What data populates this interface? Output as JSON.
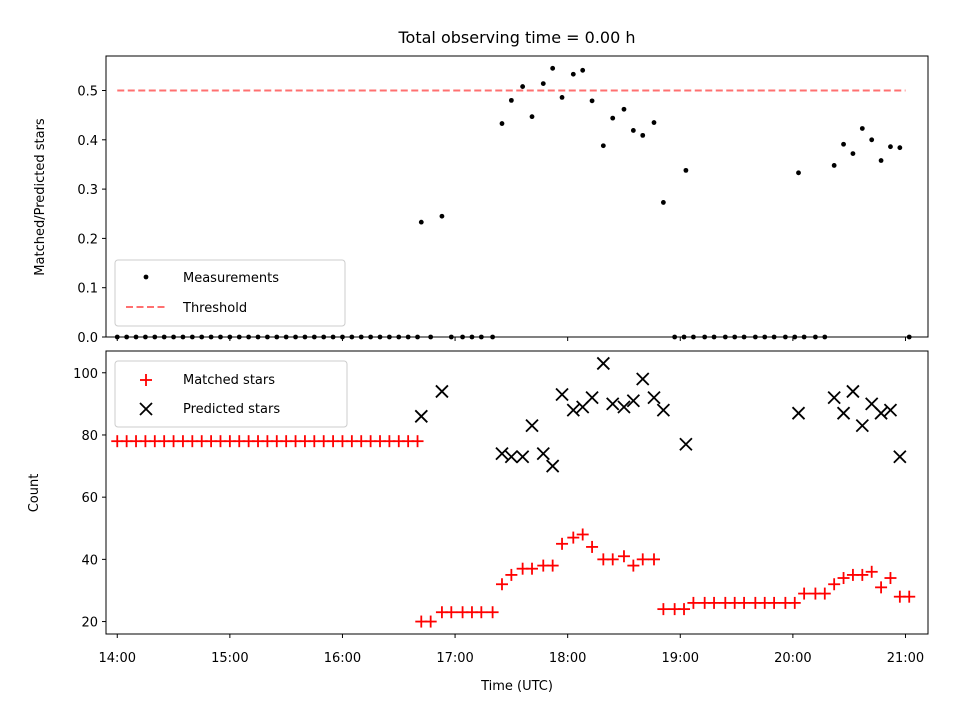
{
  "chart_data": [
    {
      "type": "scatter",
      "title": "Total observing time = 0.00 h",
      "xlabel": "",
      "ylabel": "Matched/Predicted stars",
      "xlim": [
        "13:54",
        "21:12"
      ],
      "ylim": [
        0,
        0.57
      ],
      "yticks": [
        "0.0",
        "0.1",
        "0.2",
        "0.3",
        "0.4",
        "0.5"
      ],
      "legend_position": "lower-left",
      "series": [
        {
          "name": "Measurements",
          "color": "#000000",
          "marker": "dot",
          "points": [
            [
              "14:00",
              0
            ],
            [
              "14:05",
              0
            ],
            [
              "14:10",
              0
            ],
            [
              "14:15",
              0
            ],
            [
              "14:20",
              0
            ],
            [
              "14:25",
              0
            ],
            [
              "14:30",
              0
            ],
            [
              "14:35",
              0
            ],
            [
              "14:40",
              0
            ],
            [
              "14:45",
              0
            ],
            [
              "14:50",
              0
            ],
            [
              "14:55",
              0
            ],
            [
              "15:00",
              0
            ],
            [
              "15:05",
              0
            ],
            [
              "15:10",
              0
            ],
            [
              "15:15",
              0
            ],
            [
              "15:20",
              0
            ],
            [
              "15:25",
              0
            ],
            [
              "15:30",
              0
            ],
            [
              "15:35",
              0
            ],
            [
              "15:40",
              0
            ],
            [
              "15:45",
              0
            ],
            [
              "15:50",
              0
            ],
            [
              "15:55",
              0
            ],
            [
              "16:00",
              0
            ],
            [
              "16:05",
              0
            ],
            [
              "16:10",
              0
            ],
            [
              "16:15",
              0
            ],
            [
              "16:20",
              0
            ],
            [
              "16:25",
              0
            ],
            [
              "16:30",
              0
            ],
            [
              "16:35",
              0
            ],
            [
              "16:40",
              0
            ],
            [
              "16:42",
              0.233
            ],
            [
              "16:47",
              0
            ],
            [
              "16:53",
              0.245
            ],
            [
              "16:58",
              0
            ],
            [
              "17:04",
              0
            ],
            [
              "17:09",
              0
            ],
            [
              "17:14",
              0
            ],
            [
              "17:20",
              0
            ],
            [
              "17:25",
              0.433
            ],
            [
              "17:30",
              0.48
            ],
            [
              "17:36",
              0.508
            ],
            [
              "17:41",
              0.447
            ],
            [
              "17:47",
              0.514
            ],
            [
              "17:52",
              0.545
            ],
            [
              "17:57",
              0.486
            ],
            [
              "18:03",
              0.533
            ],
            [
              "18:08",
              0.541
            ],
            [
              "18:13",
              0.479
            ],
            [
              "18:19",
              0.388
            ],
            [
              "18:24",
              0.444
            ],
            [
              "18:30",
              0.462
            ],
            [
              "18:35",
              0.419
            ],
            [
              "18:40",
              0.409
            ],
            [
              "18:46",
              0.435
            ],
            [
              "18:51",
              0.273
            ],
            [
              "18:57",
              0
            ],
            [
              "19:02",
              0
            ],
            [
              "19:07",
              0
            ],
            [
              "19:03",
              0.338
            ],
            [
              "19:13",
              0
            ],
            [
              "19:18",
              0
            ],
            [
              "19:24",
              0
            ],
            [
              "19:29",
              0
            ],
            [
              "19:34",
              0
            ],
            [
              "19:40",
              0
            ],
            [
              "19:45",
              0
            ],
            [
              "19:50",
              0
            ],
            [
              "19:56",
              0
            ],
            [
              "20:01",
              0
            ],
            [
              "20:06",
              0
            ],
            [
              "20:12",
              0
            ],
            [
              "20:17",
              0
            ],
            [
              "20:03",
              0.333
            ],
            [
              "20:22",
              0.348
            ],
            [
              "20:27",
              0.391
            ],
            [
              "20:32",
              0.372
            ],
            [
              "20:37",
              0.423
            ],
            [
              "20:42",
              0.4
            ],
            [
              "20:47",
              0.358
            ],
            [
              "20:52",
              0.386
            ],
            [
              "20:57",
              0.384
            ],
            [
              "21:02",
              0
            ]
          ]
        },
        {
          "name": "Threshold",
          "color": "#ff7070",
          "marker": "dashed-line",
          "points": [
            [
              "14:00",
              0.5
            ],
            [
              "21:00",
              0.5
            ]
          ]
        }
      ]
    },
    {
      "type": "scatter",
      "title": "",
      "xlabel": "Time (UTC)",
      "ylabel": "Count",
      "xlim": [
        "13:54",
        "21:12"
      ],
      "ylim": [
        16,
        107
      ],
      "yticks": [
        "20",
        "40",
        "60",
        "80",
        "100"
      ],
      "xticks": [
        "14:00",
        "15:00",
        "16:00",
        "17:00",
        "18:00",
        "19:00",
        "20:00",
        "21:00"
      ],
      "legend_position": "upper-left",
      "series": [
        {
          "name": "Matched stars",
          "color": "#ff0000",
          "marker": "plus",
          "points": [
            [
              "14:00",
              78
            ],
            [
              "14:05",
              78
            ],
            [
              "14:10",
              78
            ],
            [
              "14:15",
              78
            ],
            [
              "14:20",
              78
            ],
            [
              "14:25",
              78
            ],
            [
              "14:30",
              78
            ],
            [
              "14:35",
              78
            ],
            [
              "14:40",
              78
            ],
            [
              "14:45",
              78
            ],
            [
              "14:50",
              78
            ],
            [
              "14:55",
              78
            ],
            [
              "15:00",
              78
            ],
            [
              "15:05",
              78
            ],
            [
              "15:10",
              78
            ],
            [
              "15:15",
              78
            ],
            [
              "15:20",
              78
            ],
            [
              "15:25",
              78
            ],
            [
              "15:30",
              78
            ],
            [
              "15:35",
              78
            ],
            [
              "15:40",
              78
            ],
            [
              "15:45",
              78
            ],
            [
              "15:50",
              78
            ],
            [
              "15:55",
              78
            ],
            [
              "16:00",
              78
            ],
            [
              "16:05",
              78
            ],
            [
              "16:10",
              78
            ],
            [
              "16:15",
              78
            ],
            [
              "16:20",
              78
            ],
            [
              "16:25",
              78
            ],
            [
              "16:30",
              78
            ],
            [
              "16:35",
              78
            ],
            [
              "16:40",
              78
            ],
            [
              "16:42",
              20
            ],
            [
              "16:47",
              20
            ],
            [
              "16:53",
              23
            ],
            [
              "16:58",
              23
            ],
            [
              "17:04",
              23
            ],
            [
              "17:09",
              23
            ],
            [
              "17:14",
              23
            ],
            [
              "17:20",
              23
            ],
            [
              "17:25",
              32
            ],
            [
              "17:30",
              35
            ],
            [
              "17:36",
              37
            ],
            [
              "17:41",
              37
            ],
            [
              "17:47",
              38
            ],
            [
              "17:52",
              38
            ],
            [
              "17:57",
              45
            ],
            [
              "18:03",
              47
            ],
            [
              "18:08",
              48
            ],
            [
              "18:13",
              44
            ],
            [
              "18:19",
              40
            ],
            [
              "18:24",
              40
            ],
            [
              "18:30",
              41
            ],
            [
              "18:35",
              38
            ],
            [
              "18:40",
              40
            ],
            [
              "18:46",
              40
            ],
            [
              "18:51",
              24
            ],
            [
              "18:57",
              24
            ],
            [
              "19:02",
              24
            ],
            [
              "19:07",
              26
            ],
            [
              "19:13",
              26
            ],
            [
              "19:18",
              26
            ],
            [
              "19:24",
              26
            ],
            [
              "19:29",
              26
            ],
            [
              "19:34",
              26
            ],
            [
              "19:40",
              26
            ],
            [
              "19:45",
              26
            ],
            [
              "19:50",
              26
            ],
            [
              "19:56",
              26
            ],
            [
              "20:01",
              26
            ],
            [
              "20:06",
              29
            ],
            [
              "20:12",
              29
            ],
            [
              "20:17",
              29
            ],
            [
              "20:22",
              32
            ],
            [
              "20:27",
              34
            ],
            [
              "20:32",
              35
            ],
            [
              "20:37",
              35
            ],
            [
              "20:42",
              36
            ],
            [
              "20:47",
              31
            ],
            [
              "20:52",
              34
            ],
            [
              "20:57",
              28
            ],
            [
              "21:02",
              28
            ]
          ]
        },
        {
          "name": "Predicted stars",
          "color": "#000000",
          "marker": "x",
          "points": [
            [
              "16:42",
              86
            ],
            [
              "16:53",
              94
            ],
            [
              "17:25",
              74
            ],
            [
              "17:30",
              73
            ],
            [
              "17:36",
              73
            ],
            [
              "17:41",
              83
            ],
            [
              "17:47",
              74
            ],
            [
              "17:52",
              70
            ],
            [
              "17:57",
              93
            ],
            [
              "18:03",
              88
            ],
            [
              "18:08",
              89
            ],
            [
              "18:13",
              92
            ],
            [
              "18:19",
              103
            ],
            [
              "18:24",
              90
            ],
            [
              "18:30",
              89
            ],
            [
              "18:35",
              91
            ],
            [
              "18:40",
              98
            ],
            [
              "18:46",
              92
            ],
            [
              "18:51",
              88
            ],
            [
              "19:03",
              77
            ],
            [
              "20:03",
              87
            ],
            [
              "20:22",
              92
            ],
            [
              "20:27",
              87
            ],
            [
              "20:32",
              94
            ],
            [
              "20:37",
              83
            ],
            [
              "20:42",
              90
            ],
            [
              "20:47",
              87
            ],
            [
              "20:52",
              88
            ],
            [
              "20:57",
              73
            ]
          ]
        }
      ]
    }
  ]
}
